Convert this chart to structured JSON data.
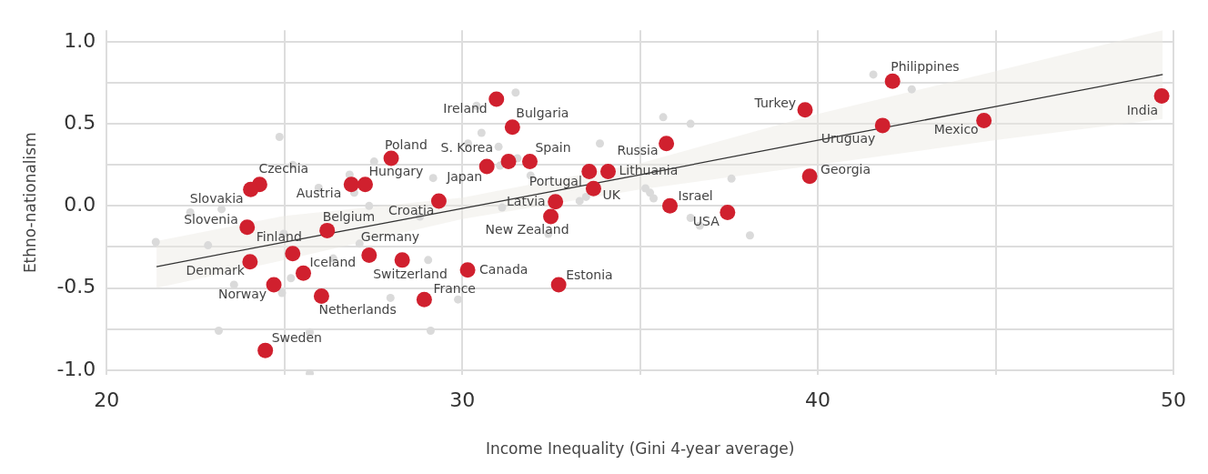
{
  "chart_data": {
    "type": "scatter",
    "xlabel": "Income Inequality (Gini 4-year average)",
    "ylabel": "Ethno-nationalism",
    "xlim": [
      20,
      50
    ],
    "xticks": [
      20,
      {
        "value": 25,
        "label": null
      },
      30,
      {
        "value": 35,
        "label": null
      },
      40,
      {
        "value": 45,
        "label": null
      },
      50
    ],
    "ylim": [
      -1.03,
      1.07
    ],
    "yticks": [
      {
        "value": -1,
        "label": "-1.0"
      },
      {
        "value": -0.75,
        "label": null
      },
      {
        "value": -0.5,
        "label": "-0.5"
      },
      {
        "value": -0.25,
        "label": null
      },
      {
        "value": 0,
        "label": "0.0"
      },
      {
        "value": 0.25,
        "label": null
      },
      {
        "value": 0.5,
        "label": "0.5"
      },
      {
        "value": 0.75,
        "label": null
      },
      {
        "value": 1,
        "label": "1.0"
      }
    ],
    "grid": true,
    "legend": false,
    "series": [
      {
        "type": "scatter",
        "marker": "circle",
        "color": "#d0202e",
        "x": [
          24.3,
          24.05,
          23.95,
          24.03,
          24.7,
          25.23,
          25.53,
          26.04,
          24.46,
          26.2,
          26.88,
          27.27,
          28.0,
          27.38,
          28.31,
          28.93,
          29.34,
          30.69,
          31.3,
          30.96,
          31.41,
          31.9,
          30.15,
          32.62,
          32.49,
          32.71,
          33.57,
          34.1,
          33.69,
          35.74,
          35.84,
          37.46,
          39.64,
          39.77,
          42.1,
          41.82,
          44.67,
          49.67
        ],
        "values": [
          0.13,
          0.1,
          -0.13,
          -0.34,
          -0.48,
          -0.29,
          -0.41,
          -0.55,
          -0.88,
          -0.15,
          0.13,
          0.13,
          0.29,
          -0.3,
          -0.33,
          -0.57,
          0.03,
          0.24,
          0.27,
          0.65,
          0.48,
          0.27,
          -0.39,
          0.025,
          -0.065,
          -0.48,
          0.21,
          0.21,
          0.105,
          0.38,
          0.0,
          -0.04,
          0.585,
          0.18,
          0.76,
          0.49,
          0.52,
          0.67
        ]
      },
      {
        "type": "scatter",
        "marker": "circle",
        "color": "#dadada",
        "x": [
          21.38,
          22.35,
          23.23,
          22.85,
          23.58,
          23.15,
          24.86,
          25.23,
          24.98,
          24.93,
          25.18,
          25.71,
          25.71,
          26.37,
          25.96,
          26.83,
          26.96,
          27.38,
          27.52,
          27.98,
          27.11,
          29.04,
          29.11,
          29.88,
          29.18,
          28.81,
          30.4,
          30.54,
          30.16,
          31.5,
          31.02,
          31.55,
          31.06,
          31.92,
          31.12,
          33.3,
          33.48,
          33.87,
          32.42,
          35.65,
          36.42,
          35.15,
          35.28,
          35.38,
          37.57,
          36.42,
          36.68,
          38.09,
          41.56,
          42.64
        ],
        "values": [
          -0.22,
          -0.04,
          -0.02,
          -0.24,
          -0.48,
          -0.76,
          0.42,
          0.25,
          -0.17,
          -0.53,
          -0.44,
          -0.77,
          -1.02,
          -0.32,
          0.11,
          0.19,
          0.08,
          0.0,
          0.27,
          -0.56,
          -0.23,
          -0.33,
          -0.76,
          -0.57,
          0.17,
          -0.065,
          0.61,
          0.445,
          0.38,
          0.69,
          0.36,
          0.29,
          0.245,
          0.185,
          -0.01,
          0.03,
          0.055,
          0.38,
          -0.17,
          0.54,
          0.5,
          0.107,
          0.08,
          0.046,
          0.166,
          -0.073,
          -0.12,
          -0.18,
          0.8,
          0.71
        ]
      },
      {
        "type": "line",
        "color": "#333333",
        "x": [
          21.4,
          25,
          30,
          35,
          40,
          45,
          49.7
        ],
        "values": [
          -0.37,
          -0.22,
          -0.015,
          0.19,
          0.4,
          0.605,
          0.8
        ],
        "lower": [
          -0.5,
          -0.33,
          -0.08,
          0.1,
          0.25,
          0.4,
          0.53
        ],
        "upper": [
          -0.215,
          -0.06,
          0.05,
          0.26,
          0.56,
          0.82,
          1.07
        ]
      }
    ],
    "annotations": [
      {
        "text": "Czechia",
        "x": 24.3,
        "y": 0.13
      },
      {
        "text": "Slovakia",
        "x": 24.05,
        "y": 0.1
      },
      {
        "text": "Slovenia",
        "x": 23.95,
        "y": -0.13
      },
      {
        "text": "Denmark",
        "x": 24.03,
        "y": -0.34
      },
      {
        "text": "Norway",
        "x": 24.7,
        "y": -0.48
      },
      {
        "text": "Finland",
        "x": 25.23,
        "y": -0.29
      },
      {
        "text": "Iceland",
        "x": 25.53,
        "y": -0.41
      },
      {
        "text": "Netherlands",
        "x": 26.04,
        "y": -0.55
      },
      {
        "text": "Sweden",
        "x": 24.46,
        "y": -0.88
      },
      {
        "text": "Belgium",
        "x": 26.2,
        "y": -0.15
      },
      {
        "text": "Austria",
        "x": 26.88,
        "y": 0.13
      },
      {
        "text": "Hungary",
        "x": 27.27,
        "y": 0.13
      },
      {
        "text": "Poland",
        "x": 28.0,
        "y": 0.29
      },
      {
        "text": "Germany",
        "x": 27.38,
        "y": -0.3
      },
      {
        "text": "Switzerland",
        "x": 28.31,
        "y": -0.33
      },
      {
        "text": "France",
        "x": 28.93,
        "y": -0.57
      },
      {
        "text": "Croatia",
        "x": 29.34,
        "y": 0.03
      },
      {
        "text": "Japan",
        "x": 30.69,
        "y": 0.24
      },
      {
        "text": "S. Korea",
        "x": 31.3,
        "y": 0.27
      },
      {
        "text": "Ireland",
        "x": 30.96,
        "y": 0.65
      },
      {
        "text": "Bulgaria",
        "x": 31.41,
        "y": 0.48
      },
      {
        "text": "Spain",
        "x": 31.9,
        "y": 0.27
      },
      {
        "text": "Canada",
        "x": 30.15,
        "y": -0.39
      },
      {
        "text": "Latvia",
        "x": 32.62,
        "y": 0.025
      },
      {
        "text": "New Zealand",
        "x": 32.49,
        "y": -0.065
      },
      {
        "text": "Estonia",
        "x": 32.71,
        "y": -0.48
      },
      {
        "text": "Portugal",
        "x": 33.57,
        "y": 0.21
      },
      {
        "text": "Lithuania",
        "x": 34.1,
        "y": 0.21
      },
      {
        "text": "UK",
        "x": 33.69,
        "y": 0.105
      },
      {
        "text": "Russia",
        "x": 35.74,
        "y": 0.38
      },
      {
        "text": "Israel",
        "x": 35.84,
        "y": 0.0
      },
      {
        "text": "USA",
        "x": 37.46,
        "y": -0.04
      },
      {
        "text": "Turkey",
        "x": 39.64,
        "y": 0.585
      },
      {
        "text": "Georgia",
        "x": 39.77,
        "y": 0.18
      },
      {
        "text": "Philippines",
        "x": 42.1,
        "y": 0.76
      },
      {
        "text": "Uruguay",
        "x": 41.82,
        "y": 0.49
      },
      {
        "text": "Mexico",
        "x": 44.67,
        "y": 0.52
      },
      {
        "text": "India",
        "x": 49.67,
        "y": 0.67
      }
    ]
  }
}
